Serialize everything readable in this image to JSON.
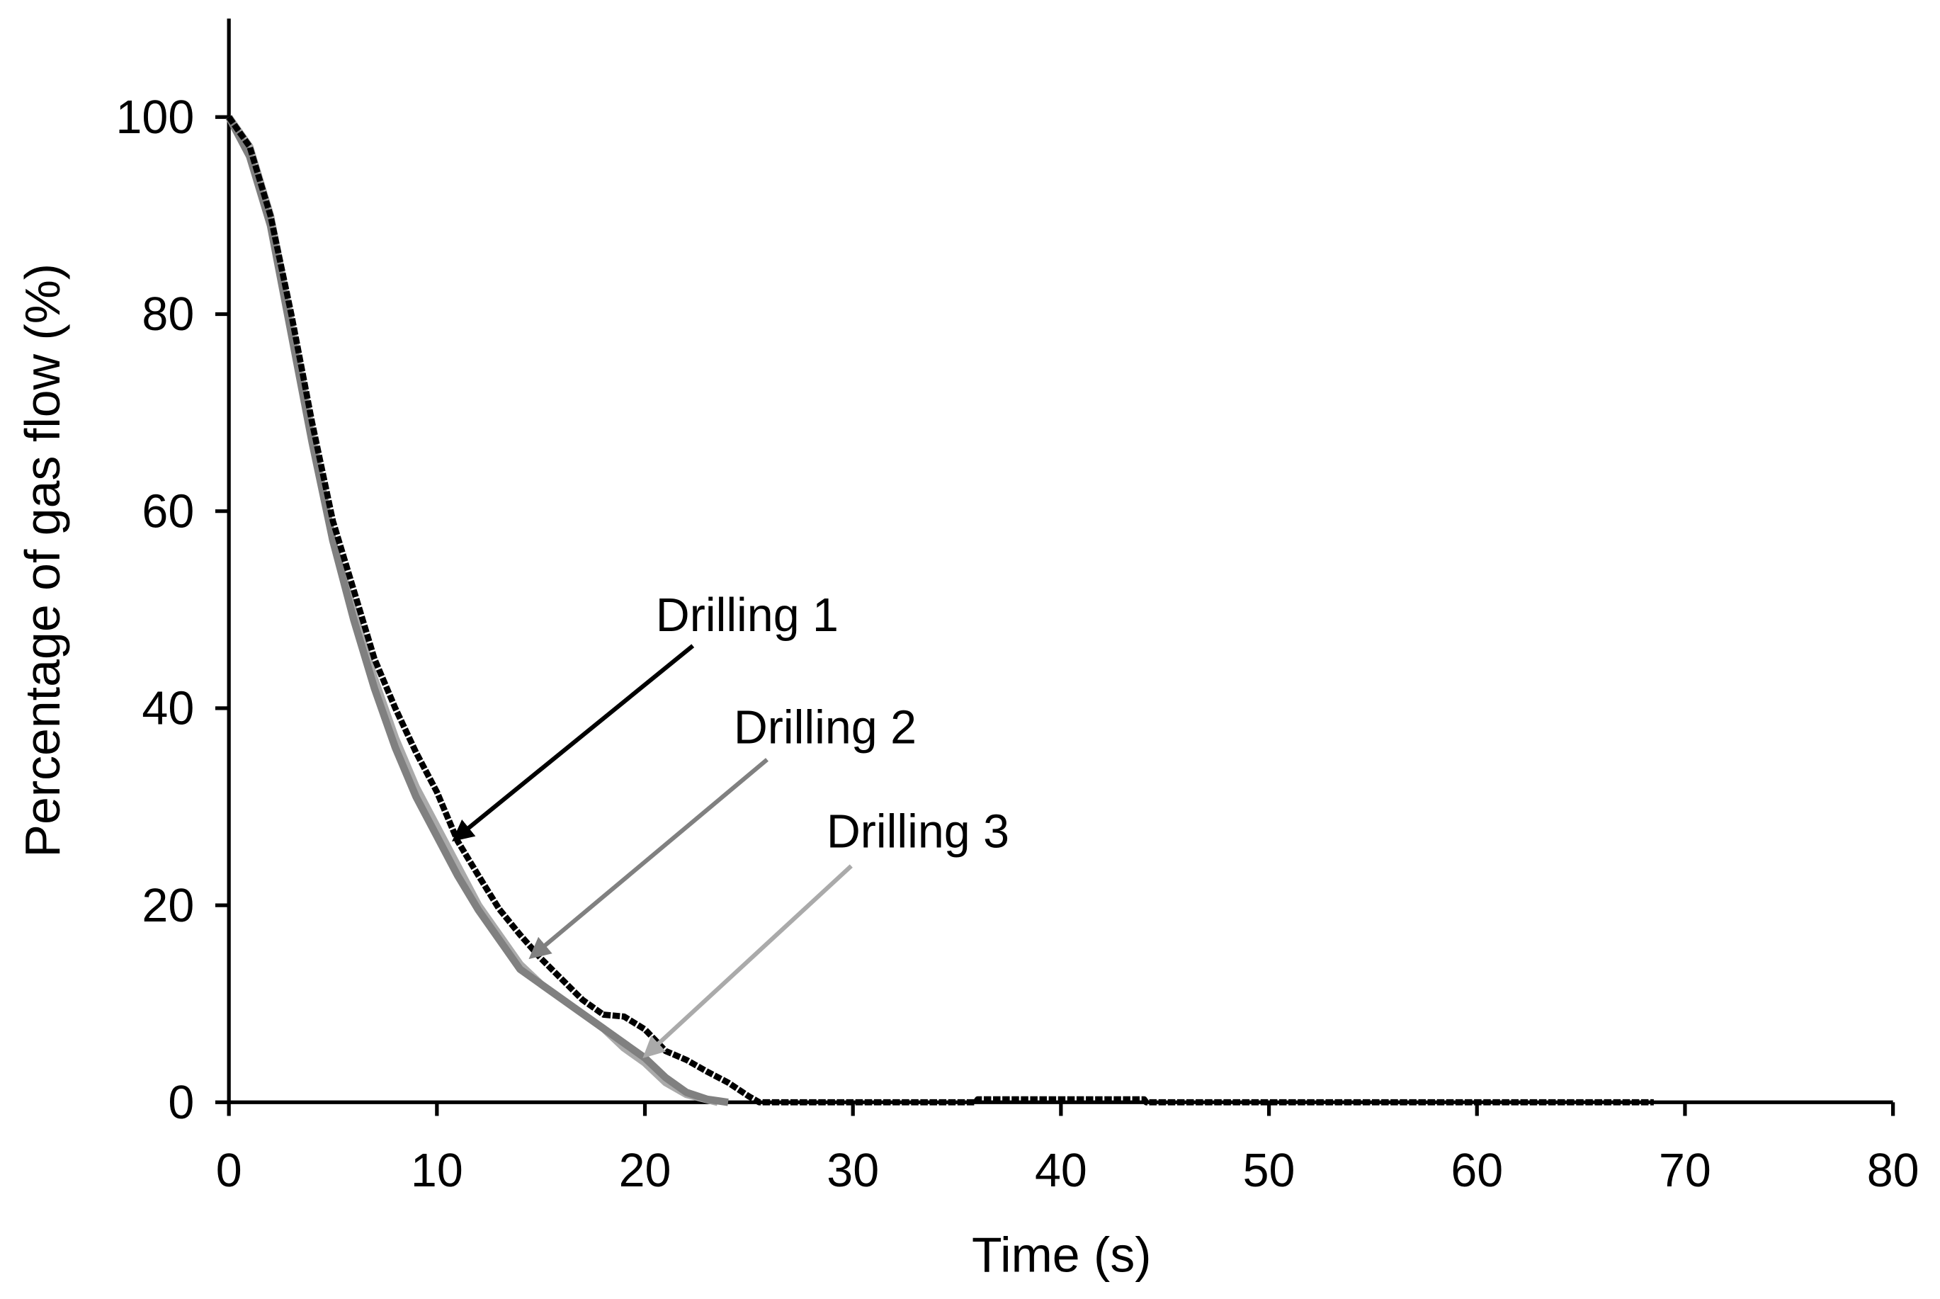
{
  "chart_data": {
    "type": "line",
    "xlabel": "Time (s)",
    "ylabel": "Percentage of gas flow (%)",
    "xlim": [
      0,
      80
    ],
    "xticks": [
      0,
      10,
      20,
      30,
      40,
      50,
      60,
      70,
      80
    ],
    "ylim": [
      0,
      110
    ],
    "yticks": [
      0,
      20,
      40,
      60,
      80,
      100
    ],
    "grid": false,
    "series": [
      {
        "name": "Drilling 1",
        "color": "#000000",
        "x": [
          0,
          1,
          2,
          3,
          4,
          5,
          6,
          7,
          8,
          9,
          10,
          11,
          12,
          13,
          14,
          15,
          16,
          17,
          18,
          19,
          20,
          21,
          22,
          23,
          24,
          25,
          25.5,
          35.9,
          36,
          44,
          44.1,
          68.5
        ],
        "values": [
          100,
          97,
          90,
          80,
          69,
          59,
          52,
          45,
          40,
          35.5,
          31.5,
          26.5,
          23,
          19.6,
          17,
          14.6,
          12.5,
          10.4,
          8.9,
          8.7,
          7.4,
          5.2,
          4.3,
          3.1,
          2,
          0.6,
          0,
          0,
          0.3,
          0.3,
          0,
          0
        ]
      },
      {
        "name": "Drilling 2",
        "color": "#808080",
        "x": [
          0,
          1,
          2,
          3,
          4,
          5,
          6,
          7,
          8,
          9,
          10,
          11,
          12,
          13,
          14,
          15,
          16,
          17,
          18,
          19,
          20,
          21,
          22,
          23,
          24
        ],
        "values": [
          100,
          96,
          89,
          78,
          67,
          57,
          49,
          42,
          36,
          31,
          27,
          23,
          19.5,
          16.5,
          13.5,
          12,
          10.5,
          9,
          7.5,
          6,
          4.5,
          2.5,
          1,
          0.3,
          0
        ]
      },
      {
        "name": "Drilling 3",
        "color": "#aaaaaa",
        "x": [
          0,
          1,
          2,
          3,
          4,
          5,
          6,
          7,
          8,
          9,
          10,
          11,
          12,
          13,
          14,
          15,
          16,
          17,
          18,
          19,
          20,
          21,
          22,
          23.5
        ],
        "values": [
          100,
          97,
          90,
          79,
          68,
          57,
          50,
          43,
          37,
          32,
          28,
          24,
          20,
          17,
          14,
          12,
          10.5,
          9,
          7.5,
          5.5,
          4,
          2,
          0.8,
          0
        ]
      }
    ]
  }
}
